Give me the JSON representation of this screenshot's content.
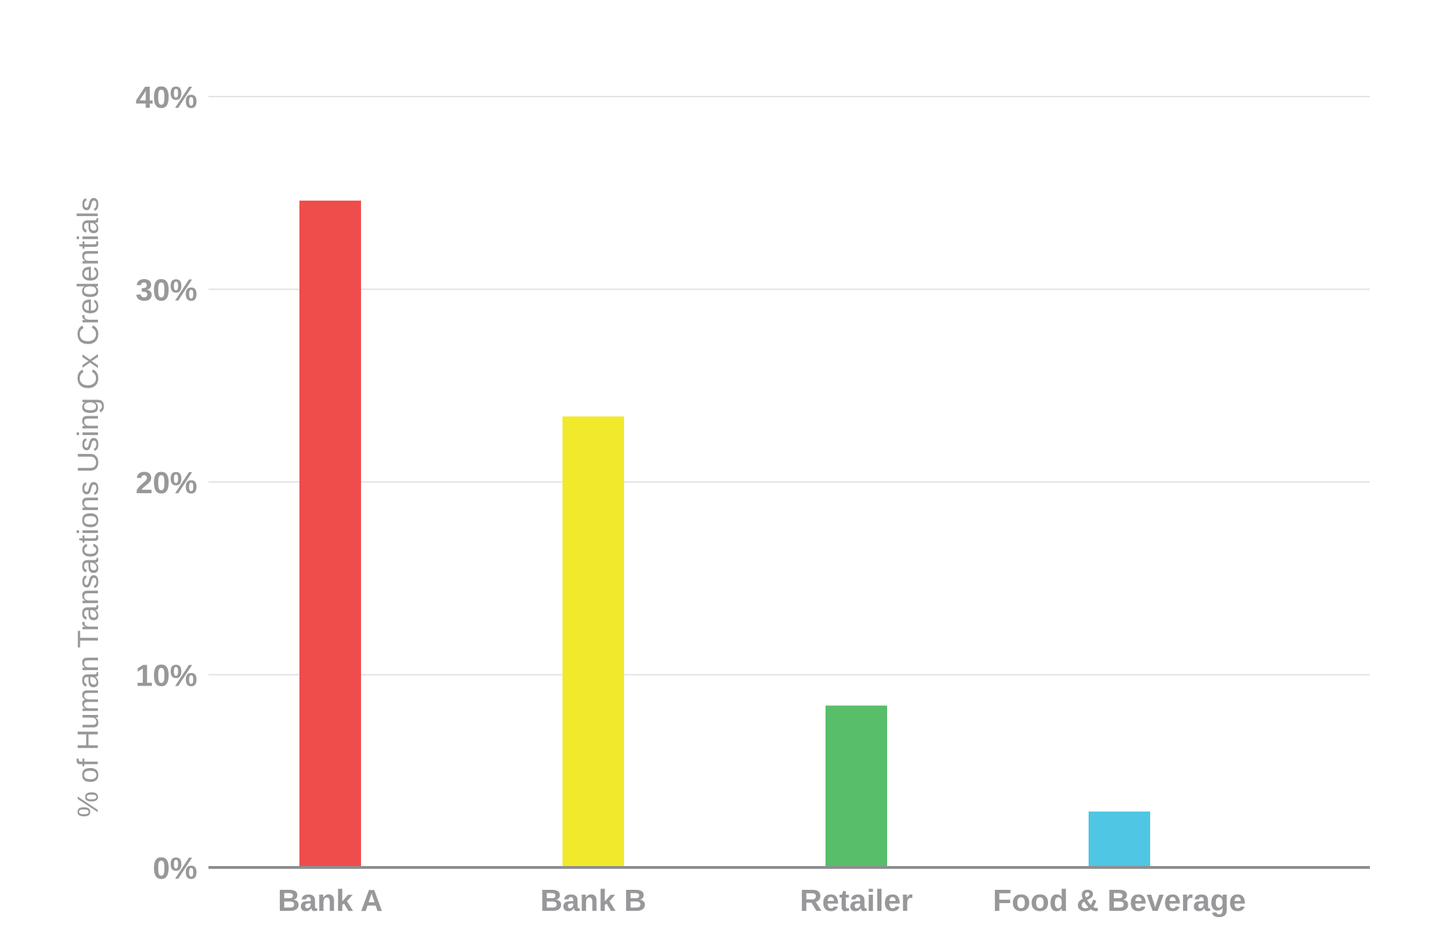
{
  "chart_data": {
    "type": "bar",
    "title": "",
    "xlabel": "",
    "ylabel": "% of Human Transactions Using Cx Credentials",
    "categories": [
      "Bank A",
      "Bank B",
      "Retailer",
      "Food & Beverage"
    ],
    "values": [
      34.6,
      23.4,
      8.4,
      2.9
    ],
    "colors": [
      "#ee4d4b",
      "#f1ea2c",
      "#58be6a",
      "#4fc6e3"
    ],
    "ylim": [
      0,
      40
    ],
    "yticks": [
      0,
      10,
      20,
      30,
      40
    ],
    "ytick_labels": [
      "0%",
      "10%",
      "20%",
      "30%",
      "40%"
    ],
    "grid": true,
    "legend": "none"
  }
}
